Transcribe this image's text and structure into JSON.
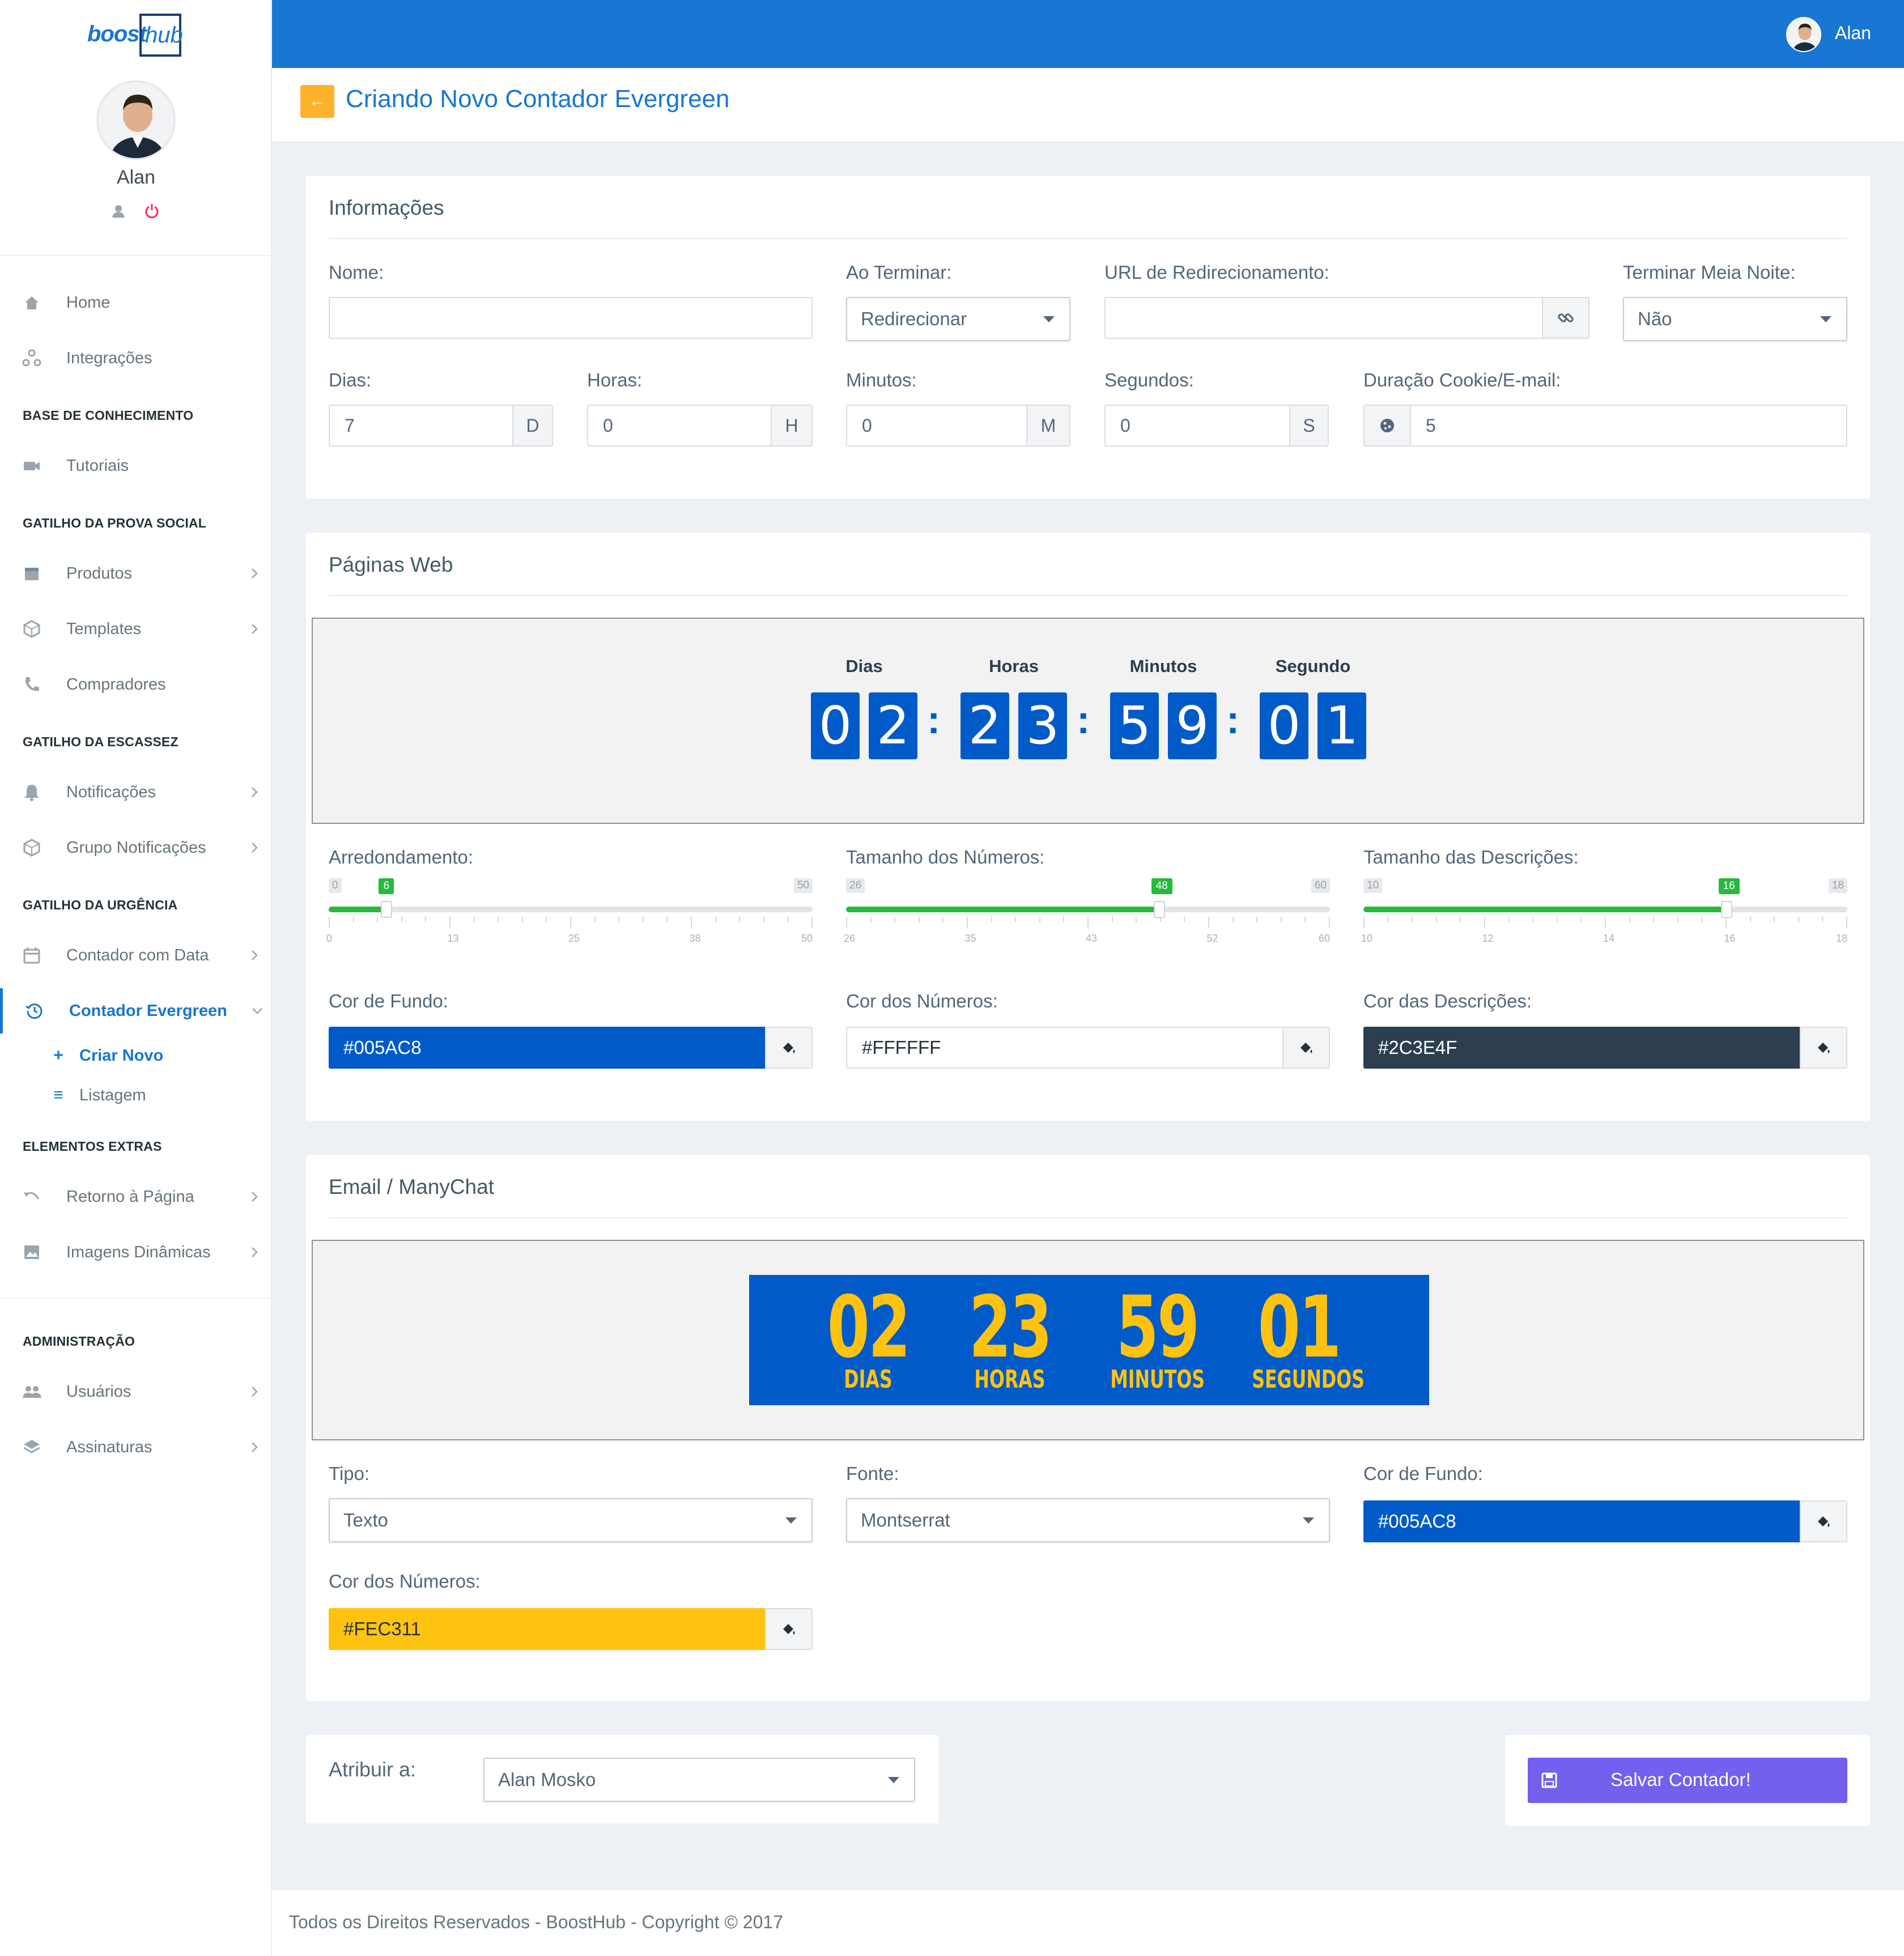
{
  "brand": {
    "word1": "boost",
    "word2": "hub"
  },
  "user": {
    "name": "Alan"
  },
  "sidebar": {
    "items": [
      {
        "label": "Home"
      },
      {
        "label": "Integrações"
      },
      {
        "label": "Tutoriais"
      },
      {
        "label": "Produtos"
      },
      {
        "label": "Templates"
      },
      {
        "label": "Compradores"
      },
      {
        "label": "Notificações"
      },
      {
        "label": "Grupo Notificações"
      },
      {
        "label": "Contador com Data"
      },
      {
        "label": "Contador Evergreen"
      },
      {
        "label": "Retorno à Página"
      },
      {
        "label": "Imagens Dinâmicas"
      },
      {
        "label": "Usuários"
      },
      {
        "label": "Assinaturas"
      }
    ],
    "headings": [
      "BASE DE CONHECIMENTO",
      "GATILHO DA PROVA SOCIAL",
      "GATILHO DA ESCASSEZ",
      "GATILHO DA URGÊNCIA",
      "ELEMENTOS EXTRAS",
      "ADMINISTRAÇÃO"
    ],
    "sub_items": [
      {
        "label": "Criar Novo",
        "icon": "+"
      },
      {
        "label": "Listagem",
        "icon": "≡"
      }
    ]
  },
  "page": {
    "title": "Criando Novo Contador Evergreen",
    "back_icon": "←"
  },
  "info": {
    "title": "Informações",
    "nome": {
      "label": "Nome:",
      "value": ""
    },
    "ao_terminar": {
      "label": "Ao Terminar:",
      "value": "Redirecionar"
    },
    "url": {
      "label": "URL de Redirecionamento:",
      "value": ""
    },
    "meia_noite": {
      "label": "Terminar Meia Noite:",
      "value": "Não"
    },
    "dias": {
      "label": "Dias:",
      "value": "7",
      "suffix": "D"
    },
    "horas": {
      "label": "Horas:",
      "value": "0",
      "suffix": "H"
    },
    "minutos": {
      "label": "Minutos:",
      "value": "0",
      "suffix": "M"
    },
    "segundos": {
      "label": "Segundos:",
      "value": "0",
      "suffix": "S"
    },
    "cookie": {
      "label": "Duração Cookie/E-mail:",
      "value": "5"
    }
  },
  "web": {
    "title": "Páginas Web",
    "labels": [
      "Dias",
      "Horas",
      "Minutos",
      "Segundo"
    ],
    "digits": [
      "0",
      "2",
      "2",
      "3",
      "5",
      "9",
      "0",
      "1"
    ],
    "colon": ":",
    "sliders": [
      {
        "label": "Arredondamento:",
        "min": 0,
        "max": 50,
        "value": 6,
        "ticks": [
          "0",
          "13",
          "25",
          "38",
          "50"
        ]
      },
      {
        "label": "Tamanho dos Números:",
        "min": 26,
        "max": 60,
        "value": 48,
        "ticks": [
          "26",
          "35",
          "43",
          "52",
          "60"
        ]
      },
      {
        "label": "Tamanho das Descrições:",
        "min": 10,
        "max": 18,
        "value": 16,
        "ticks": [
          "10",
          "12",
          "14",
          "16",
          "18"
        ]
      }
    ],
    "colors": [
      {
        "label": "Cor de Fundo:",
        "value": "#005AC8",
        "bg": "#005ac8",
        "fg": "#ffffff"
      },
      {
        "label": "Cor dos Números:",
        "value": "#FFFFFF",
        "bg": "#ffffff",
        "fg": "#263238"
      },
      {
        "label": "Cor das Descrições:",
        "value": "#2C3E4F",
        "bg": "#2c3e4f",
        "fg": "#ffffff"
      }
    ]
  },
  "email": {
    "title": "Email / ManyChat",
    "numbers": [
      "02",
      "23",
      "59",
      "01"
    ],
    "labels": [
      "DIAS",
      "HORAS",
      "MINUTOS",
      "SEGUNDOS"
    ],
    "tipo": {
      "label": "Tipo:",
      "value": "Texto"
    },
    "fonte": {
      "label": "Fonte:",
      "value": "Montserrat"
    },
    "cor_fundo": {
      "label": "Cor de Fundo:",
      "value": "#005AC8",
      "bg": "#005ac8",
      "fg": "#ffffff"
    },
    "cor_numeros": {
      "label": "Cor dos Números:",
      "value": "#FEC311",
      "bg": "#fec311",
      "fg": "#263238"
    }
  },
  "assign": {
    "label": "Atribuir a:",
    "value": "Alan Mosko"
  },
  "save": {
    "label": "Salvar Contador!"
  },
  "footer": {
    "text": "Todos os Direitos Reservados - BoostHub - Copyright © 2017"
  }
}
